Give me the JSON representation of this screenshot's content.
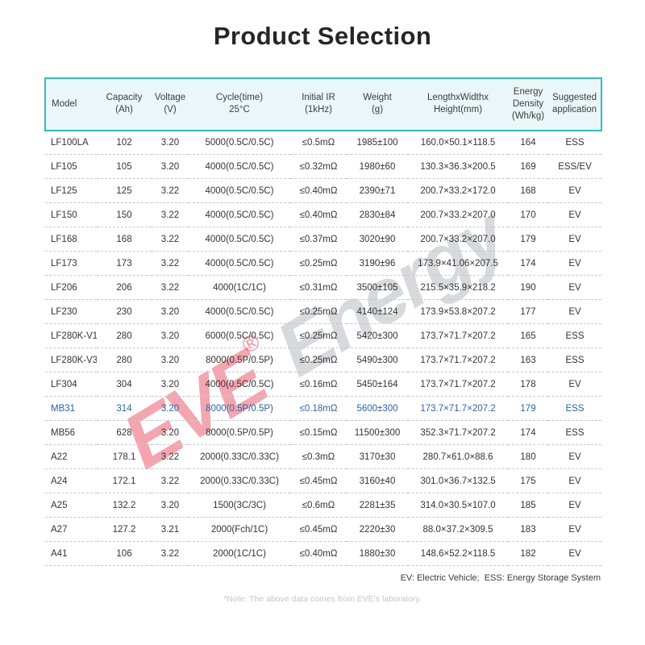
{
  "title": "Product Selection",
  "watermark": {
    "brand": "EVE",
    "reg": "®",
    "word": "Energy"
  },
  "table": {
    "column_keys": [
      "model",
      "capacity_ah",
      "voltage_v",
      "cycle_time_25c",
      "initial_ir_1khz",
      "weight_g",
      "length_width_height_mm",
      "energy_density_wh_kg",
      "suggested_application"
    ],
    "headers": [
      [
        "Model"
      ],
      [
        "Capacity",
        "(Ah)"
      ],
      [
        "Voltage",
        "(V)"
      ],
      [
        "Cycle(time)",
        "25°C"
      ],
      [
        "Initial IR",
        "(1kHz)"
      ],
      [
        "Weight",
        "(g)"
      ],
      [
        "LengthxWidthx",
        "Height(mm)"
      ],
      [
        "Energy",
        "Density",
        "(Wh/kg)"
      ],
      [
        "Suggested",
        "application"
      ]
    ],
    "highlight_row_index": 11,
    "rows": [
      [
        "LF100LA",
        "102",
        "3.20",
        "5000(0.5C/0.5C)",
        "≤0.5mΩ",
        "1985±100",
        "160.0×50.1×118.5",
        "164",
        "ESS"
      ],
      [
        "LF105",
        "105",
        "3.20",
        "4000(0.5C/0.5C)",
        "≤0.32mΩ",
        "1980±60",
        "130.3×36.3×200.5",
        "169",
        "ESS/EV"
      ],
      [
        "LF125",
        "125",
        "3.22",
        "4000(0.5C/0.5C)",
        "≤0.40mΩ",
        "2390±71",
        "200.7×33.2×172.0",
        "168",
        "EV"
      ],
      [
        "LF150",
        "150",
        "3.22",
        "4000(0.5C/0.5C)",
        "≤0.40mΩ",
        "2830±84",
        "200.7×33.2×207.0",
        "170",
        "EV"
      ],
      [
        "LF168",
        "168",
        "3.22",
        "4000(0.5C/0.5C)",
        "≤0.37mΩ",
        "3020±90",
        "200.7×33.2×207.0",
        "179",
        "EV"
      ],
      [
        "LF173",
        "173",
        "3.22",
        "4000(0.5C/0.5C)",
        "≤0.25mΩ",
        "3190±96",
        "173.9×41.06×207.5",
        "174",
        "EV"
      ],
      [
        "LF206",
        "206",
        "3.22",
        "4000(1C/1C)",
        "≤0.31mΩ",
        "3500±105",
        "215.5×35.9×218.2",
        "190",
        "EV"
      ],
      [
        "LF230",
        "230",
        "3.20",
        "4000(0.5C/0.5C)",
        "≤0.25mΩ",
        "4140±124",
        "173.9×53.8×207.2",
        "177",
        "EV"
      ],
      [
        "LF280K-V1",
        "280",
        "3.20",
        "6000(0.5C/0.5C)",
        "≤0.25mΩ",
        "5420±300",
        "173.7×71.7×207.2",
        "165",
        "ESS"
      ],
      [
        "LF280K-V3",
        "280",
        "3.20",
        "8000(0.5P/0.5P)",
        "≤0.25mΩ",
        "5490±300",
        "173.7×71.7×207.2",
        "163",
        "ESS"
      ],
      [
        "LF304",
        "304",
        "3.20",
        "4000(0.5C/0.5C)",
        "≤0.16mΩ",
        "5450±164",
        "173.7×71.7×207.2",
        "178",
        "EV"
      ],
      [
        "MB31",
        "314",
        "3.20",
        "8000(0.5P/0.5P)",
        "≤0.18mΩ",
        "5600±300",
        "173.7×71.7×207.2",
        "179",
        "ESS"
      ],
      [
        "MB56",
        "628",
        "3.20",
        "8000(0.5P/0.5P)",
        "≤0.15mΩ",
        "11500±300",
        "352.3×71.7×207.2",
        "174",
        "ESS"
      ],
      [
        "A22",
        "178.1",
        "3.22",
        "2000(0.33C/0.33C)",
        "≤0.3mΩ",
        "3170±30",
        "280.7×61.0×88.6",
        "180",
        "EV"
      ],
      [
        "A24",
        "172.1",
        "3.22",
        "2000(0.33C/0.33C)",
        "≤0.45mΩ",
        "3160±40",
        "301.0×36.7×132.5",
        "175",
        "EV"
      ],
      [
        "A25",
        "132.2",
        "3.20",
        "1500(3C/3C)",
        "≤0.6mΩ",
        "2281±35",
        "314.0×30.5×107.0",
        "185",
        "EV"
      ],
      [
        "A27",
        "127.2",
        "3.21",
        "2000(Fch/1C)",
        "≤0.45mΩ",
        "2220±30",
        "88.0×37.2×309.5",
        "183",
        "EV"
      ],
      [
        "A41",
        "106",
        "3.22",
        "2000(1C/1C)",
        "≤0.40mΩ",
        "1880±30",
        "148.6×52.2×118.5",
        "182",
        "EV"
      ]
    ]
  },
  "legend": "EV: Electric Vehicle;  ESS: Energy Storage System",
  "note": "*Note: The above data comes from EVE's laboratory.",
  "colors": {
    "accent_teal": "#35babf",
    "header_bg": "#eaf6f8",
    "body_text": "#333333",
    "highlight_blue": "#2c63a8",
    "divider_gray": "#c9c9c9",
    "note_gray": "#c5c5c5",
    "title_color": "#262626",
    "watermark_red": "#e6375073",
    "watermark_gray": "#8c929e59"
  }
}
